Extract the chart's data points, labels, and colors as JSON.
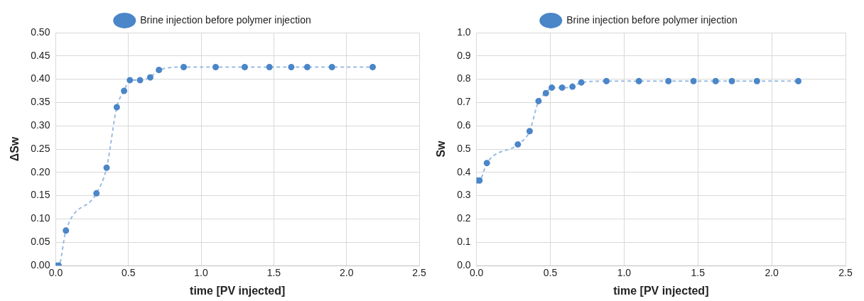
{
  "chart_data": [
    {
      "type": "line",
      "xlabel": "time [PV injected]",
      "ylabel": "ΔSw",
      "x": [
        0,
        0.02,
        0.07,
        0.28,
        0.35,
        0.42,
        0.47,
        0.51,
        0.58,
        0.65,
        0.71,
        0.88,
        1.1,
        1.3,
        1.47,
        1.62,
        1.73,
        1.9,
        2.18
      ],
      "series": [
        {
          "name": "Brine injection before polymer injection",
          "color": "#4a86c8",
          "values": [
            0,
            0,
            0.075,
            0.155,
            0.21,
            0.34,
            0.375,
            0.398,
            0.398,
            0.404,
            0.42,
            0.426,
            0.426,
            0.426,
            0.426,
            0.426,
            0.426,
            0.426,
            0.426
          ]
        }
      ],
      "xlim": [
        0,
        2.5
      ],
      "xticks": [
        {
          "value": 0,
          "label": "0.0"
        },
        0.5,
        {
          "value": 1,
          "label": "1.0"
        },
        1.5,
        {
          "value": 2,
          "label": "2.0"
        },
        2.5
      ],
      "ylim": [
        0,
        0.5
      ],
      "yticks": [
        {
          "value": 0,
          "label": "0.00"
        },
        {
          "value": 0.05,
          "label": "0.05"
        },
        {
          "value": 0.1,
          "label": "0.10"
        },
        {
          "value": 0.15,
          "label": "0.15"
        },
        {
          "value": 0.2,
          "label": "0.20"
        },
        {
          "value": 0.25,
          "label": "0.25"
        },
        {
          "value": 0.3,
          "label": "0.30"
        },
        {
          "value": 0.35,
          "label": "0.35"
        },
        {
          "value": 0.4,
          "label": "0.40"
        },
        {
          "value": 0.45,
          "label": "0.45"
        },
        {
          "value": 0.5,
          "label": "0.50"
        }
      ],
      "grid": true,
      "legend": "top",
      "marker": "circle",
      "line_style": "dashed"
    },
    {
      "type": "line",
      "xlabel": "time [PV injected]",
      "ylabel": "Sw",
      "x": [
        0,
        0.02,
        0.07,
        0.28,
        0.36,
        0.42,
        0.47,
        0.51,
        0.58,
        0.65,
        0.71,
        0.88,
        1.1,
        1.3,
        1.47,
        1.62,
        1.73,
        1.9,
        2.18
      ],
      "series": [
        {
          "name": "Brine injection before polymer injection",
          "color": "#4a86c8",
          "values": [
            0.365,
            0.365,
            0.44,
            0.52,
            0.577,
            0.706,
            0.74,
            0.764,
            0.764,
            0.768,
            0.786,
            0.792,
            0.792,
            0.792,
            0.792,
            0.792,
            0.792,
            0.792,
            0.792
          ]
        }
      ],
      "xlim": [
        0,
        2.5
      ],
      "xticks": [
        {
          "value": 0,
          "label": "0.0"
        },
        0.5,
        {
          "value": 1,
          "label": "1.0"
        },
        1.5,
        {
          "value": 2,
          "label": "2.0"
        },
        2.5
      ],
      "ylim": [
        0,
        1
      ],
      "yticks": [
        {
          "value": 0,
          "label": "0.0"
        },
        0.1,
        0.2,
        0.3,
        0.4,
        0.5,
        0.6,
        0.7,
        0.8,
        0.9,
        {
          "value": 1,
          "label": "1.0"
        }
      ],
      "grid": true,
      "legend": "top",
      "marker": "circle",
      "line_style": "dashed"
    }
  ]
}
